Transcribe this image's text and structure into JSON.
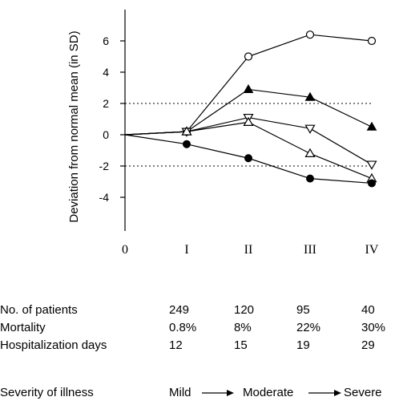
{
  "chart_data": {
    "type": "line",
    "ylabel": "Deviation from normal mean (in SD)",
    "categories": [
      "0",
      "I",
      "II",
      "III",
      "IV"
    ],
    "ylim": [
      -6.5,
      8
    ],
    "yticks": [
      "6",
      "4",
      "2",
      "0",
      "-2",
      "-4"
    ],
    "reference_lines": [
      2,
      -2
    ],
    "series": [
      {
        "marker": "open-circle",
        "values": [
          0,
          0.2,
          5.0,
          6.4,
          6.0
        ]
      },
      {
        "marker": "filled-triangle",
        "values": [
          0,
          0.2,
          2.9,
          2.4,
          0.5
        ]
      },
      {
        "marker": "open-down-triangle",
        "values": [
          0,
          0.2,
          1.1,
          0.4,
          -1.9
        ]
      },
      {
        "marker": "open-triangle",
        "values": [
          0,
          0.2,
          0.8,
          -1.2,
          -2.8
        ]
      },
      {
        "marker": "filled-circle",
        "values": [
          0,
          -0.6,
          -1.5,
          -2.8,
          -3.1
        ]
      }
    ]
  },
  "table": {
    "rows": [
      {
        "label": "No. of patients",
        "values": [
          "249",
          "120",
          "95",
          "40"
        ]
      },
      {
        "label": "Mortality",
        "values": [
          "0.8%",
          "8%",
          "22%",
          "30%"
        ]
      },
      {
        "label": "Hospitalization days",
        "values": [
          "12",
          "15",
          "19",
          "29"
        ]
      }
    ]
  },
  "severity": {
    "label": "Severity of illness",
    "mild": "Mild",
    "moderate": "Moderate",
    "severe": "Severe"
  }
}
